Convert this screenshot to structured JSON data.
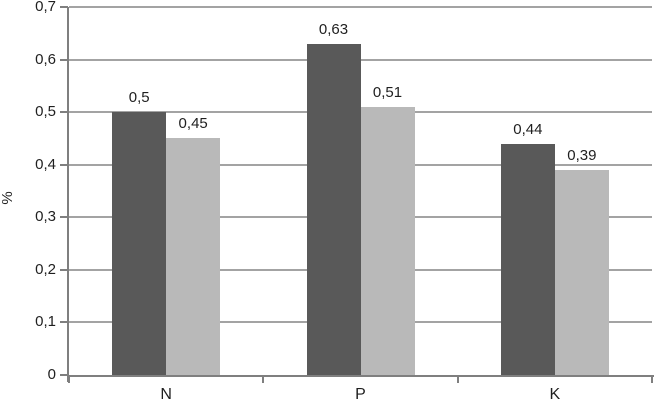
{
  "chart_data": {
    "type": "bar",
    "title": "",
    "xlabel": "",
    "ylabel": "%",
    "categories": [
      "N",
      "P",
      "K"
    ],
    "series": [
      {
        "name": "dark-gray-series",
        "color": "#595959",
        "values": [
          0.5,
          0.63,
          0.44
        ],
        "labels": [
          "0,5",
          "0,63",
          "0,44"
        ]
      },
      {
        "name": "light-gray-series",
        "color": "#b9b9b9",
        "values": [
          0.45,
          0.51,
          0.39
        ],
        "labels": [
          "0,45",
          "0,51",
          "0,39"
        ]
      }
    ],
    "ylim": [
      0,
      0.7
    ],
    "ytick_values": [
      0,
      0.1,
      0.2,
      0.3,
      0.4,
      0.5,
      0.6,
      0.7
    ],
    "ytick_labels": [
      "0",
      "0,1",
      "0,2",
      "0,3",
      "0,4",
      "0,5",
      "0,6",
      "0,7"
    ],
    "decimal_separator": ",",
    "grid": true,
    "legend": false
  },
  "colors": {
    "bar_dark": "#595959",
    "bar_light": "#b9b9b9",
    "gridline": "#a3a3a3",
    "axis": "#7f7f7f",
    "text": "#1f1f1f",
    "background": "#ffffff"
  }
}
